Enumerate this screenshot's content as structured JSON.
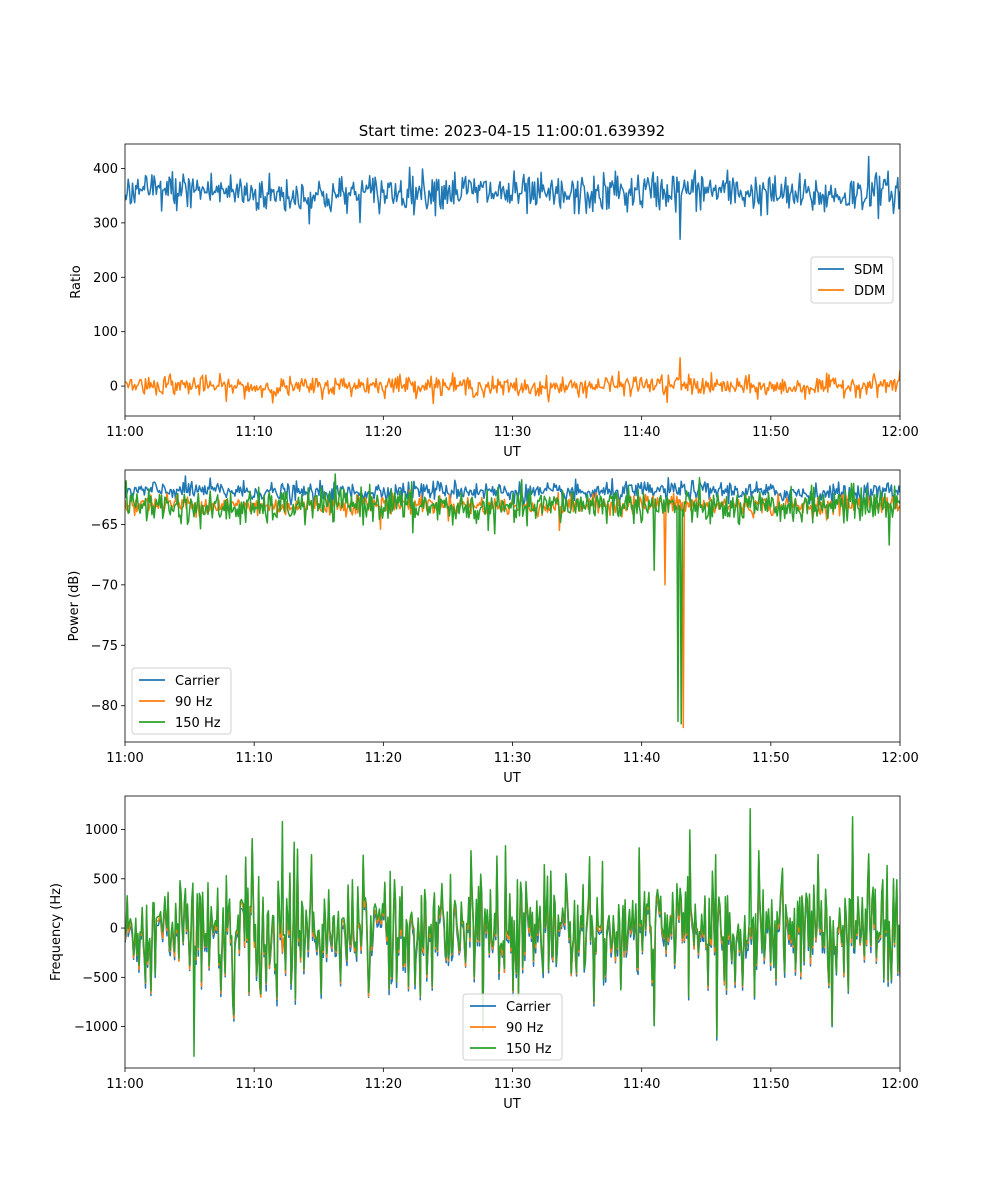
{
  "chart_data": [
    {
      "type": "line",
      "title": "Start time: 2023-04-15 11:00:01.639392",
      "xlabel": "UT",
      "ylabel": "Ratio",
      "xlim": [
        "11:00",
        "12:00"
      ],
      "ylim": [
        -55,
        445
      ],
      "xticks": [
        "11:00",
        "11:10",
        "11:20",
        "11:30",
        "11:40",
        "11:50",
        "12:00"
      ],
      "yticks": [
        0,
        100,
        200,
        300,
        400
      ],
      "legend": "center-right",
      "grid": false,
      "series": [
        {
          "name": "SDM",
          "color": "#1f77b4",
          "baseline": 355,
          "noise": 18,
          "spikes": [
            {
              "t": "11:43",
              "value": 270
            },
            {
              "t": "11:57.6",
              "value": 422
            },
            {
              "t": "11:38",
              "value": 395
            }
          ]
        },
        {
          "name": "DDM",
          "color": "#ff7f0e",
          "baseline": 0,
          "noise": 9,
          "spikes": [
            {
              "t": "11:43",
              "value": 52
            },
            {
              "t": "11:42",
              "value": -30
            },
            {
              "t": "11:03.5",
              "value": 22
            }
          ]
        }
      ]
    },
    {
      "type": "line",
      "title": "",
      "xlabel": "UT",
      "ylabel": "Power (dB)",
      "xlim": [
        "11:00",
        "12:00"
      ],
      "ylim": [
        -83,
        -60.5
      ],
      "xticks": [
        "11:00",
        "11:10",
        "11:20",
        "11:30",
        "11:40",
        "11:50",
        "12:00"
      ],
      "yticks": [
        -65,
        -70,
        -75,
        -80
      ],
      "legend": "lower-left",
      "grid": false,
      "series": [
        {
          "name": "Carrier",
          "color": "#1f77b4",
          "baseline": -62.3,
          "noise": 0.4,
          "spikes": []
        },
        {
          "name": "90 Hz",
          "color": "#ff7f0e",
          "baseline": -63.4,
          "noise": 0.4,
          "spikes": [
            {
              "t": "11:41.8",
              "value": -70
            },
            {
              "t": "11:43.2",
              "value": -81.8
            },
            {
              "t": "11:33.6",
              "value": -65.5
            },
            {
              "t": "11:19.8",
              "value": -65.4
            }
          ]
        },
        {
          "name": "150 Hz",
          "color": "#2ca02c",
          "baseline": -63.5,
          "noise": 0.7,
          "spikes": [
            {
              "t": "11:41",
              "value": -68.8
            },
            {
              "t": "11:42.8",
              "value": -81.3
            },
            {
              "t": "11:43.1",
              "value": -81.5
            },
            {
              "t": "11:59.2",
              "value": -66.7
            },
            {
              "t": "11:22.3",
              "value": -65.7
            }
          ]
        }
      ]
    },
    {
      "type": "line",
      "title": "",
      "xlabel": "UT",
      "ylabel": "Frequency (Hz)",
      "xlim": [
        "11:00",
        "12:00"
      ],
      "ylim": [
        -1420,
        1340
      ],
      "xticks": [
        "11:00",
        "11:10",
        "11:20",
        "11:30",
        "11:40",
        "11:50",
        "12:00"
      ],
      "yticks": [
        1000,
        500,
        0,
        -500,
        -1000
      ],
      "legend": "lower-center",
      "grid": false,
      "series": [
        {
          "name": "Carrier",
          "color": "#1f77b4",
          "offset": -70,
          "amplitude": 520
        },
        {
          "name": "90 Hz",
          "color": "#ff7f0e",
          "offset": -35,
          "amplitude": 520
        },
        {
          "name": "150 Hz",
          "color": "#2ca02c",
          "offset": 0,
          "amplitude": 540,
          "spikes": [
            {
              "t": "11:48.4",
              "value": 1210
            },
            {
              "t": "11:05.3",
              "value": -1300
            },
            {
              "t": "11:12.2",
              "value": 1080
            }
          ]
        }
      ]
    }
  ]
}
